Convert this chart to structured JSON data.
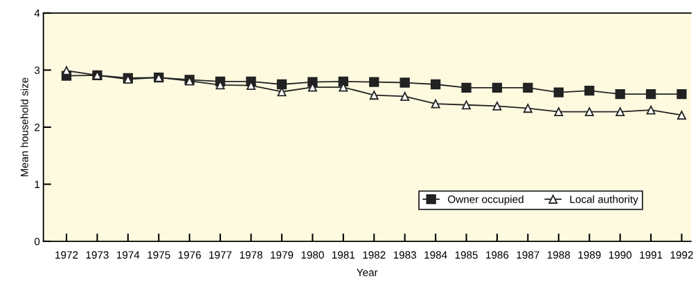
{
  "chart_data": {
    "type": "line",
    "xlabel": "Year",
    "ylabel": "Mean household size",
    "categories": [
      "1972",
      "1973",
      "1974",
      "1975",
      "1976",
      "1977",
      "1978",
      "1979",
      "1980",
      "1981",
      "1982",
      "1983",
      "1984",
      "1985",
      "1986",
      "1987",
      "1988",
      "1989",
      "1990",
      "1991",
      "1992"
    ],
    "series": [
      {
        "name": "Owner occupied",
        "color": "#222222",
        "marker": "square",
        "values": [
          2.9,
          2.91,
          2.86,
          2.87,
          2.83,
          2.8,
          2.8,
          2.75,
          2.79,
          2.8,
          2.79,
          2.78,
          2.75,
          2.69,
          2.69,
          2.69,
          2.61,
          2.64,
          2.58,
          2.58,
          2.58
        ]
      },
      {
        "name": "Local authority",
        "color": "#222222",
        "marker": "triangle",
        "values": [
          2.99,
          2.91,
          2.84,
          2.87,
          2.81,
          2.74,
          2.73,
          2.62,
          2.7,
          2.7,
          2.56,
          2.54,
          2.41,
          2.39,
          2.37,
          2.33,
          2.27,
          2.27,
          2.27,
          2.3,
          2.21
        ]
      }
    ],
    "ylim": [
      0,
      4
    ],
    "yticks": [
      0,
      1,
      2,
      3,
      4
    ],
    "grid": false,
    "legend": "bottom right",
    "line_style": "solid"
  }
}
